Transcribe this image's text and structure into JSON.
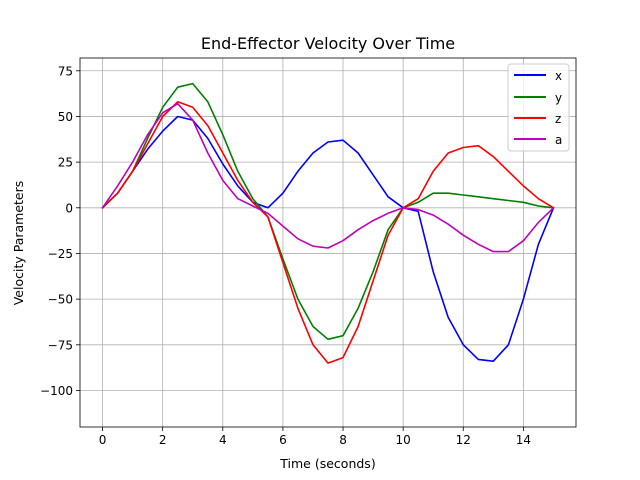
{
  "chart_data": {
    "type": "line",
    "title": "End-Effector Velocity Over Time",
    "xlabel": "Time (seconds)",
    "ylabel": "Velocity Parameters",
    "xlim": [
      -0.75,
      15.75
    ],
    "ylim": [
      -120,
      82
    ],
    "xticks": [
      0,
      2,
      4,
      6,
      8,
      10,
      12,
      14
    ],
    "yticks": [
      -100,
      -75,
      -50,
      -25,
      0,
      25,
      50,
      75
    ],
    "grid": true,
    "legend_position": "top-right",
    "series": [
      {
        "name": "x",
        "color": "#0000ff",
        "x": [
          0,
          0.5,
          1,
          1.5,
          2,
          2.5,
          3,
          3.5,
          4,
          4.5,
          5,
          5.5,
          6,
          6.5,
          7,
          7.5,
          8,
          8.5,
          9,
          9.5,
          10,
          10.5,
          11,
          11.5,
          12,
          12.5,
          13,
          13.5,
          14,
          14.5,
          15
        ],
        "values": [
          0,
          8,
          20,
          32,
          42,
          50,
          48,
          38,
          24,
          12,
          3,
          0,
          8,
          20,
          30,
          36,
          37,
          30,
          18,
          6,
          0,
          -2,
          -35,
          -60,
          -75,
          -83,
          -84,
          -75,
          -50,
          -20,
          0
        ]
      },
      {
        "name": "y",
        "color": "#008000",
        "x": [
          0,
          0.5,
          1,
          1.5,
          2,
          2.5,
          3,
          3.5,
          4,
          4.5,
          5,
          5.5,
          6,
          6.5,
          7,
          7.5,
          8,
          8.5,
          9,
          9.5,
          10,
          10.5,
          11,
          11.5,
          12,
          12.5,
          13,
          13.5,
          14,
          14.5,
          15
        ],
        "values": [
          0,
          8,
          20,
          38,
          55,
          66,
          68,
          58,
          40,
          20,
          5,
          -5,
          -28,
          -50,
          -65,
          -72,
          -70,
          -55,
          -35,
          -12,
          0,
          3,
          8,
          8,
          7,
          6,
          5,
          4,
          3,
          1,
          0
        ]
      },
      {
        "name": "z",
        "color": "#ff0000",
        "x": [
          0,
          0.5,
          1,
          1.5,
          2,
          2.5,
          3,
          3.5,
          4,
          4.5,
          5,
          5.5,
          6,
          6.5,
          7,
          7.5,
          8,
          8.5,
          9,
          9.5,
          10,
          10.5,
          11,
          11.5,
          12,
          12.5,
          13,
          13.5,
          14,
          14.5,
          15
        ],
        "values": [
          0,
          8,
          20,
          35,
          50,
          58,
          55,
          45,
          30,
          15,
          3,
          -5,
          -30,
          -55,
          -75,
          -85,
          -82,
          -65,
          -40,
          -15,
          0,
          5,
          20,
          30,
          33,
          34,
          28,
          20,
          12,
          5,
          0
        ]
      },
      {
        "name": "a",
        "color": "#bf00bf",
        "x": [
          0,
          0.5,
          1,
          1.5,
          2,
          2.5,
          3,
          3.5,
          4,
          4.5,
          5,
          5.5,
          6,
          6.5,
          7,
          7.5,
          8,
          8.5,
          9,
          9.5,
          10,
          10.5,
          11,
          11.5,
          12,
          12.5,
          13,
          13.5,
          14,
          14.5,
          15
        ],
        "values": [
          0,
          12,
          25,
          40,
          52,
          57,
          48,
          30,
          15,
          5,
          1,
          -3,
          -10,
          -17,
          -21,
          -22,
          -18,
          -12,
          -7,
          -3,
          0,
          -1,
          -4,
          -9,
          -15,
          -20,
          -24,
          -24,
          -18,
          -8,
          0
        ]
      }
    ]
  }
}
